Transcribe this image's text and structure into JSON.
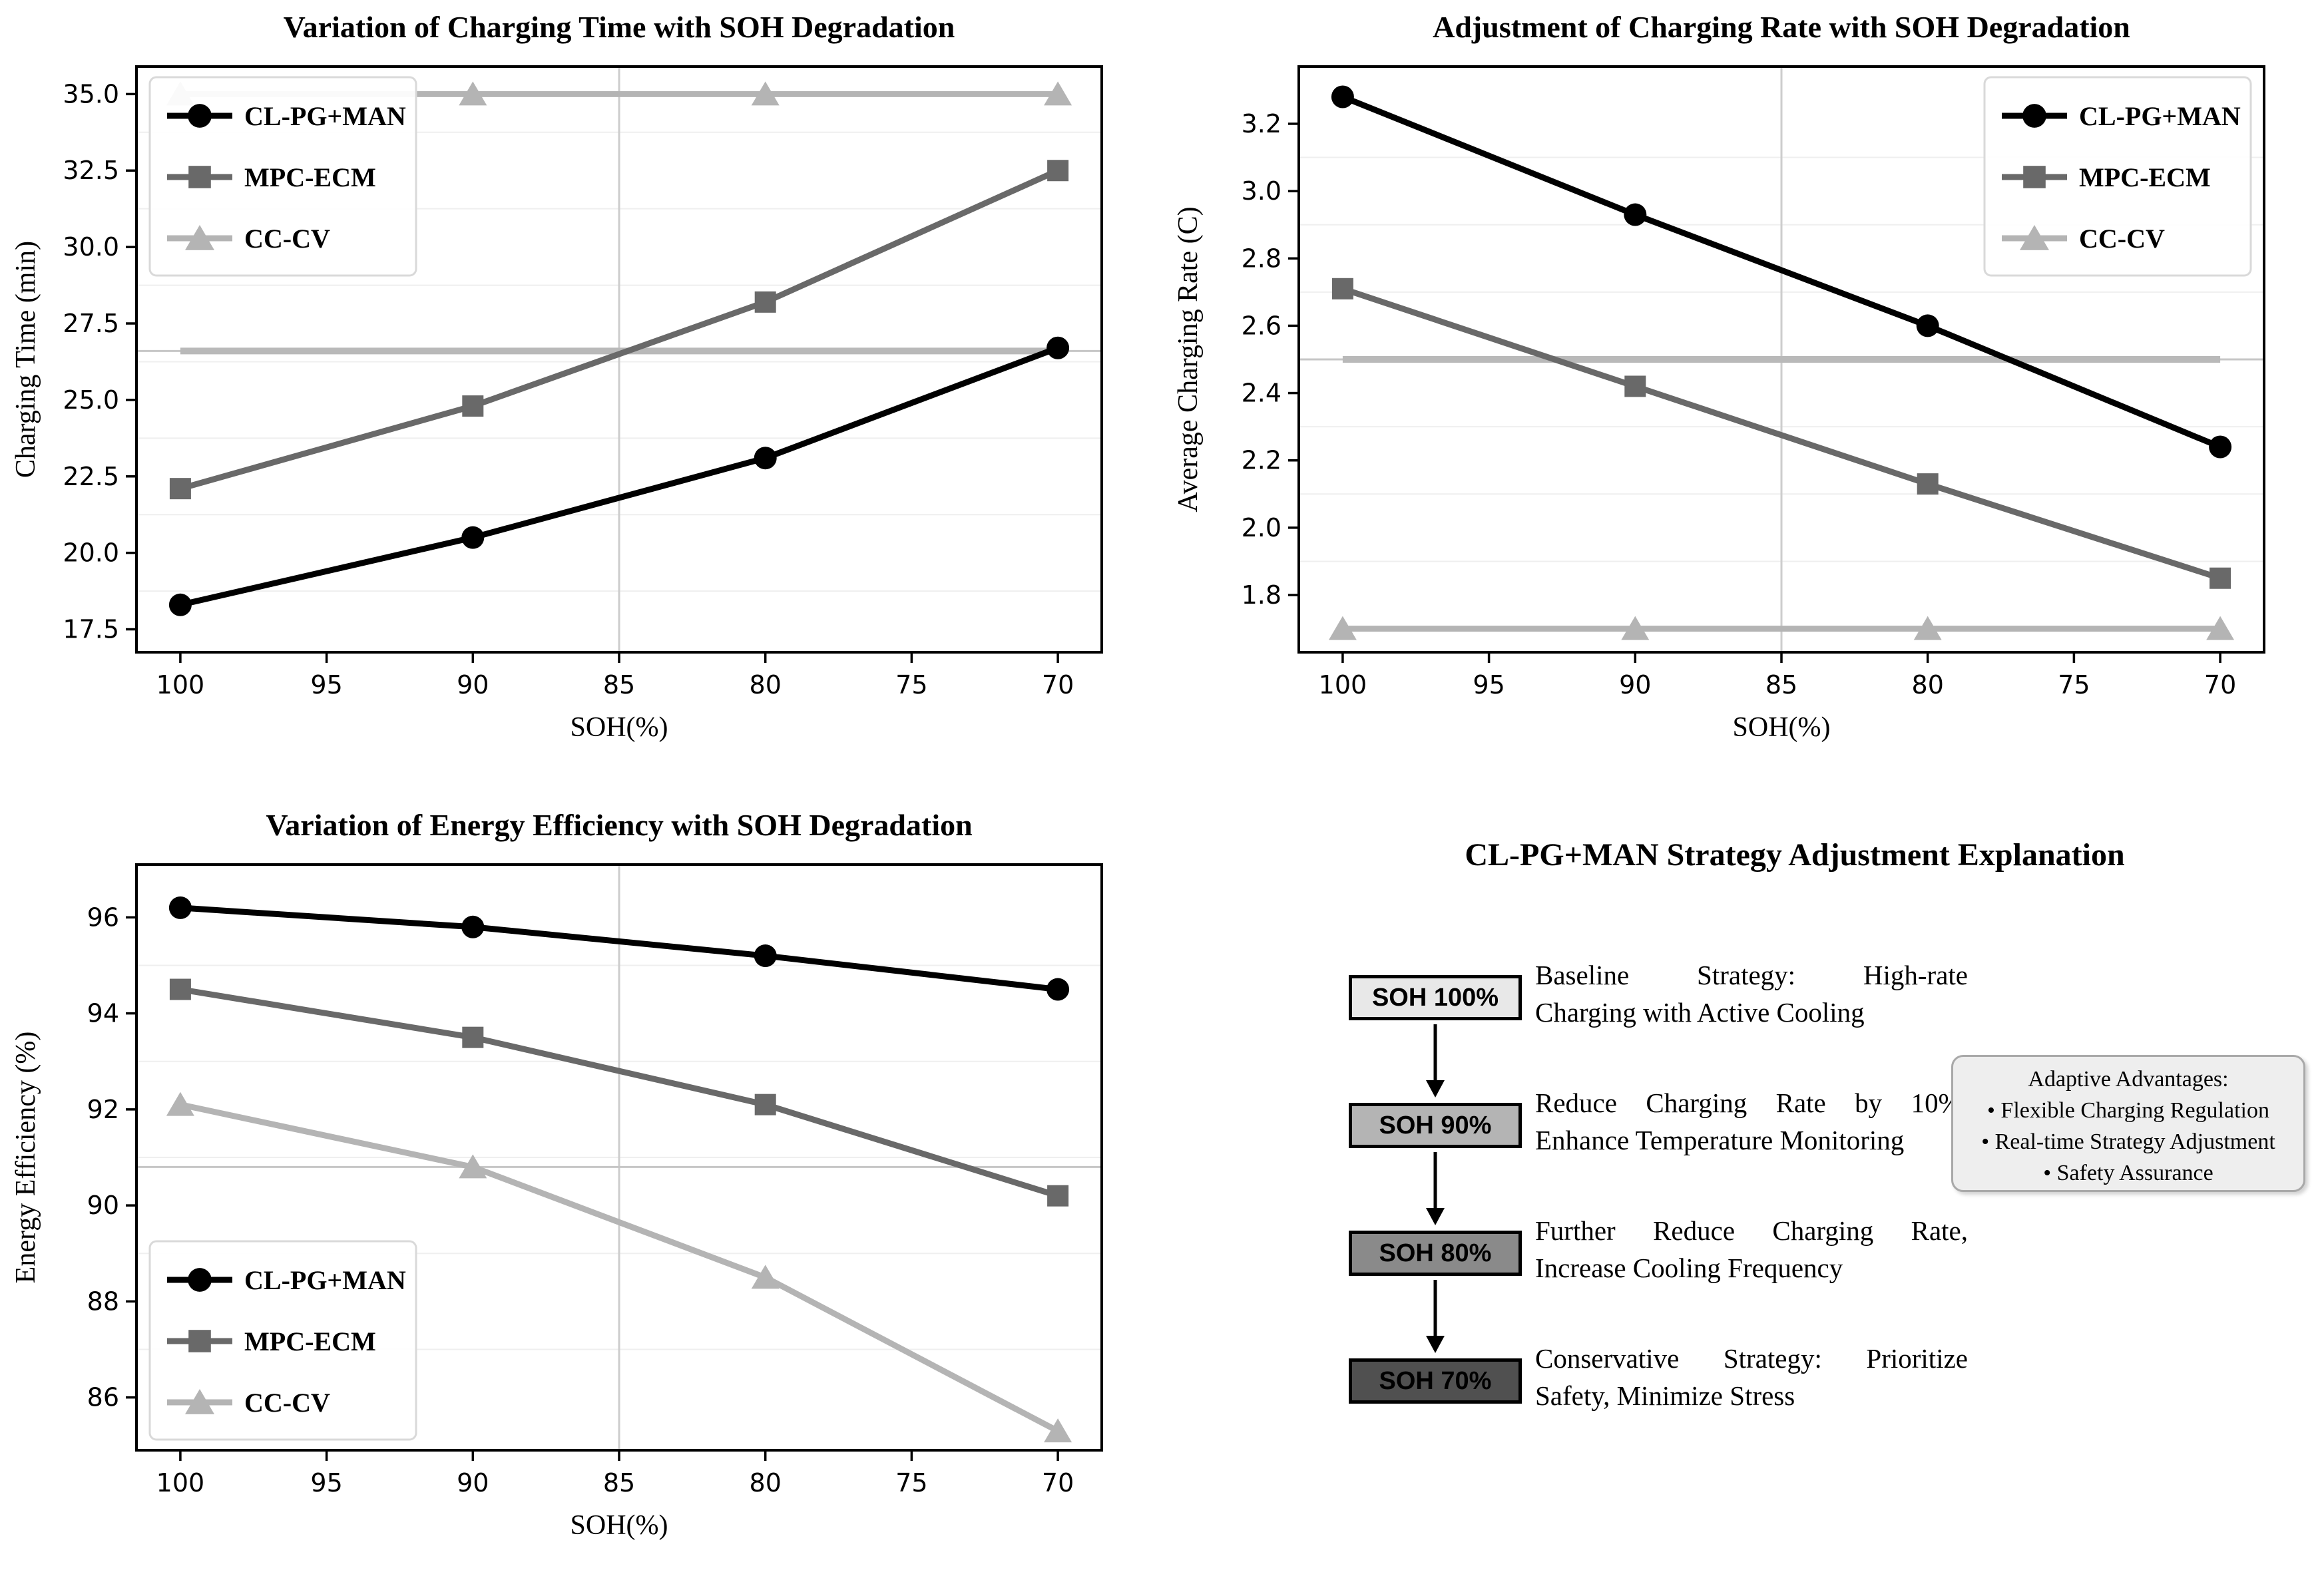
{
  "colors": {
    "axis": "#000000",
    "vline_85": "#cdcdcd",
    "refline_thin": "#c6c6c6",
    "refline_thick": "#b9b9b9",
    "minor_grid": "#efefef",
    "legend_border": "#d9d9d9"
  },
  "chart_data": [
    {
      "type": "line",
      "title": "Variation of Charging Time with SOH Degradation",
      "xlabel": "SOH(%)",
      "ylabel": "Charging Time (min)",
      "x": [
        100,
        90,
        80,
        70
      ],
      "xticks": [
        100,
        95,
        90,
        85,
        80,
        75,
        70
      ],
      "xlim": [
        101.5,
        68.5
      ],
      "yticks": [
        17.5,
        20.0,
        22.5,
        25.0,
        27.5,
        30.0,
        32.5,
        35.0
      ],
      "ytick_labels": [
        "17.5",
        "20.0",
        "22.5",
        "25.0",
        "27.5",
        "30.0",
        "32.5",
        "35.0"
      ],
      "ylim": [
        16.75,
        35.9
      ],
      "vline": 85,
      "refline": {
        "value": 26.6,
        "thick": true
      },
      "legend_pos": "upper-left",
      "series": [
        {
          "name": "CL-PG+MAN",
          "marker": "circle",
          "color": "#000000",
          "values": [
            18.3,
            20.5,
            23.1,
            26.7
          ]
        },
        {
          "name": "MPC-ECM",
          "marker": "square",
          "color": "#696969",
          "values": [
            22.1,
            24.8,
            28.2,
            32.5
          ]
        },
        {
          "name": "CC-CV",
          "marker": "triangle",
          "color": "#b4b4b4",
          "values": [
            35.0,
            35.0,
            35.0,
            35.0
          ]
        }
      ]
    },
    {
      "type": "line",
      "title": "Adjustment of Charging Rate with SOH Degradation",
      "xlabel": "SOH(%)",
      "ylabel": "Average Charging Rate (C)",
      "x": [
        100,
        90,
        80,
        70
      ],
      "xticks": [
        100,
        95,
        90,
        85,
        80,
        75,
        70
      ],
      "xlim": [
        101.5,
        68.5
      ],
      "yticks": [
        1.8,
        2.0,
        2.2,
        2.4,
        2.6,
        2.8,
        3.0,
        3.2
      ],
      "ytick_labels": [
        "1.8",
        "2.0",
        "2.2",
        "2.4",
        "2.6",
        "2.8",
        "3.0",
        "3.2"
      ],
      "ylim": [
        1.63,
        3.37
      ],
      "vline": 85,
      "refline": {
        "value": 2.5,
        "thick": true
      },
      "legend_pos": "upper-right",
      "series": [
        {
          "name": "CL-PG+MAN",
          "marker": "circle",
          "color": "#000000",
          "values": [
            3.28,
            2.93,
            2.6,
            2.24
          ]
        },
        {
          "name": "MPC-ECM",
          "marker": "square",
          "color": "#696969",
          "values": [
            2.71,
            2.42,
            2.13,
            1.85
          ]
        },
        {
          "name": "CC-CV",
          "marker": "triangle",
          "color": "#b4b4b4",
          "values": [
            1.7,
            1.7,
            1.7,
            1.7
          ]
        }
      ]
    },
    {
      "type": "line",
      "title": "Variation of Energy Efficiency with SOH Degradation",
      "xlabel": "SOH(%)",
      "ylabel": "Energy Efficiency (%)",
      "x": [
        100,
        90,
        80,
        70
      ],
      "xticks": [
        100,
        95,
        90,
        85,
        80,
        75,
        70
      ],
      "xlim": [
        101.5,
        68.5
      ],
      "yticks": [
        86,
        88,
        90,
        92,
        94,
        96
      ],
      "ytick_labels": [
        "86",
        "88",
        "90",
        "92",
        "94",
        "96"
      ],
      "ylim": [
        84.9,
        97.1
      ],
      "vline": 85,
      "refline": {
        "value": 90.8,
        "thick": false
      },
      "legend_pos": "lower-left",
      "series": [
        {
          "name": "CL-PG+MAN",
          "marker": "circle",
          "color": "#000000",
          "values": [
            96.2,
            95.8,
            95.2,
            94.5
          ]
        },
        {
          "name": "MPC-ECM",
          "marker": "square",
          "color": "#696969",
          "values": [
            94.5,
            93.5,
            92.1,
            90.2
          ]
        },
        {
          "name": "CC-CV",
          "marker": "triangle",
          "color": "#b4b4b4",
          "values": [
            92.1,
            90.8,
            88.5,
            85.3
          ]
        }
      ]
    }
  ],
  "flowchart": {
    "title": "CL-PG+MAN Strategy Adjustment Explanation",
    "steps": [
      {
        "label": "SOH 100%",
        "fill": "#e8e8e8",
        "desc1": "Baseline   Strategy:   High-rate",
        "desc2": "Charging with Active Cooling"
      },
      {
        "label": "SOH 90%",
        "fill": "#b4b4b4",
        "desc1": "Reduce  Charging  Rate  by  10%,",
        "desc2": "Enhance Temperature Monitoring"
      },
      {
        "label": "SOH 80%",
        "fill": "#8a8a8a",
        "desc1": "Further  Reduce  Charging  Rate,",
        "desc2": "Increase Cooling Frequency"
      },
      {
        "label": "SOH 70%",
        "fill": "#505050",
        "desc1": "Conservative Strategy: Prioritize",
        "desc2": "Safety, Minimize Stress"
      }
    ],
    "advantages": {
      "title": "Adaptive Advantages:",
      "items": [
        "Flexible Charging Regulation",
        "Real-time Strategy Adjustment",
        "Safety Assurance"
      ]
    }
  }
}
